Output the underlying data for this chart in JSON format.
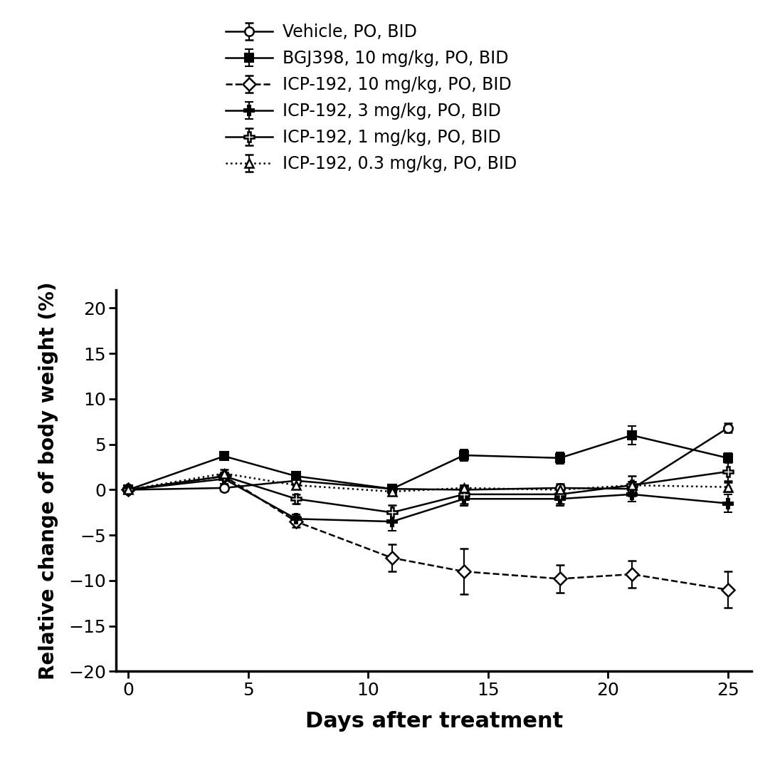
{
  "title": "",
  "xlabel": "Days after treatment",
  "ylabel": "Relative change of body weight (%)",
  "xlim": [
    -0.5,
    26
  ],
  "ylim": [
    -20,
    22
  ],
  "yticks": [
    -20,
    -15,
    -10,
    -5,
    0,
    5,
    10,
    15,
    20
  ],
  "xticks": [
    0,
    5,
    10,
    15,
    20,
    25
  ],
  "days": [
    0,
    4,
    7,
    11,
    14,
    18,
    21,
    25
  ],
  "series": [
    {
      "label": "Vehicle, PO, BID",
      "marker": "o",
      "linestyle": "-",
      "color": "#000000",
      "markersize": 9,
      "linewidth": 1.8,
      "mfc": "white",
      "mew": 1.8,
      "y": [
        0,
        0.2,
        1.0,
        0.1,
        0.0,
        0.2,
        0.1,
        6.8
      ],
      "yerr": [
        0,
        0.3,
        0.5,
        0.4,
        0.5,
        0.5,
        0.8,
        0.5
      ]
    },
    {
      "label": "BGJ398, 10 mg/kg, PO, BID",
      "marker": "s",
      "linestyle": "-",
      "color": "#000000",
      "markersize": 9,
      "linewidth": 1.8,
      "mfc": "black",
      "mew": 1.5,
      "y": [
        0,
        3.7,
        1.5,
        0.1,
        3.8,
        3.5,
        6.0,
        3.5
      ],
      "yerr": [
        0,
        0.3,
        0.4,
        0.5,
        0.6,
        0.6,
        1.0,
        0.5
      ]
    },
    {
      "label": "ICP-192, 10 mg/kg, PO, BID",
      "marker": "D",
      "linestyle": "--",
      "color": "#000000",
      "markersize": 9,
      "linewidth": 1.8,
      "mfc": "white",
      "mew": 1.8,
      "y": [
        0,
        1.5,
        -3.5,
        -7.5,
        -9.0,
        -9.8,
        -9.3,
        -11.0
      ],
      "yerr": [
        0,
        0.4,
        0.6,
        1.5,
        2.5,
        1.5,
        1.5,
        2.0
      ]
    },
    {
      "label": "ICP-192, 3 mg/kg, PO, BID",
      "marker": "P",
      "linestyle": "-",
      "color": "#000000",
      "markersize": 10,
      "linewidth": 1.8,
      "mfc": "black",
      "mew": 1.5,
      "y": [
        0,
        1.2,
        -3.2,
        -3.5,
        -1.0,
        -1.0,
        -0.5,
        -1.5
      ],
      "yerr": [
        0,
        0.5,
        0.5,
        1.0,
        0.8,
        0.8,
        0.8,
        1.0
      ]
    },
    {
      "label": "ICP-192, 1 mg/kg, PO, BID",
      "marker": "P",
      "linestyle": "-",
      "color": "#000000",
      "markersize": 10,
      "linewidth": 1.8,
      "mfc": "white",
      "mew": 1.8,
      "y": [
        0,
        1.5,
        -1.0,
        -2.5,
        -0.5,
        -0.5,
        0.5,
        2.0
      ],
      "yerr": [
        0,
        0.4,
        0.5,
        0.8,
        1.0,
        1.0,
        1.0,
        1.0
      ]
    },
    {
      "label": "ICP-192, 0.3 mg/kg, PO, BID",
      "marker": "^",
      "linestyle": ":",
      "color": "#000000",
      "markersize": 9,
      "linewidth": 1.8,
      "mfc": "white",
      "mew": 1.8,
      "y": [
        0,
        1.8,
        0.5,
        -0.2,
        0.2,
        0.0,
        0.5,
        0.3
      ],
      "yerr": [
        0,
        0.4,
        0.4,
        0.3,
        0.3,
        0.4,
        0.4,
        0.5
      ]
    }
  ],
  "background_color": "#ffffff",
  "figsize": [
    10.89,
    10.71
  ],
  "dpi": 100
}
